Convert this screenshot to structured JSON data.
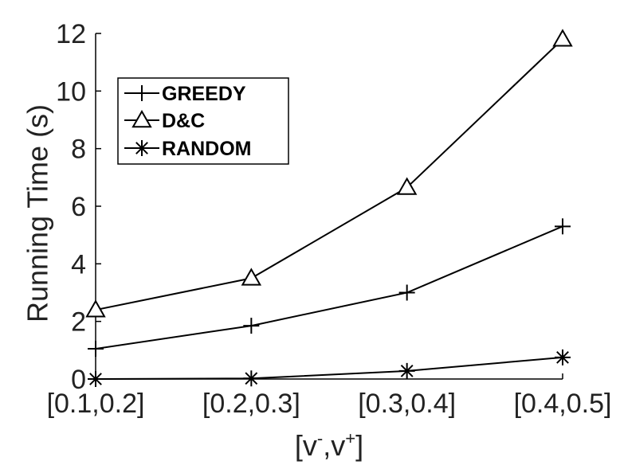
{
  "chart_data": {
    "type": "line",
    "categories": [
      "[0.1,0.2]",
      "[0.2,0.3]",
      "[0.3,0.4]",
      "[0.4,0.5]"
    ],
    "series": [
      {
        "name": "GREEDY",
        "marker": "plus",
        "values": [
          1.05,
          1.85,
          3.0,
          5.3
        ]
      },
      {
        "name": "D&C",
        "marker": "triangle",
        "values": [
          2.4,
          3.5,
          6.65,
          11.8
        ]
      },
      {
        "name": "RANDOM",
        "marker": "asterisk",
        "values": [
          0.0,
          0.02,
          0.28,
          0.75
        ]
      }
    ],
    "xlabel": {
      "base": "[v",
      "sup1": "-",
      "mid": ",v",
      "sup2": "+",
      "end": "]"
    },
    "ylabel": "Running Time (s)",
    "ylim": [
      0,
      12
    ],
    "yticks": [
      0,
      2,
      4,
      6,
      8,
      10,
      12
    ],
    "grid": false,
    "legend_position": "upper-left",
    "line_color": "#000000"
  }
}
